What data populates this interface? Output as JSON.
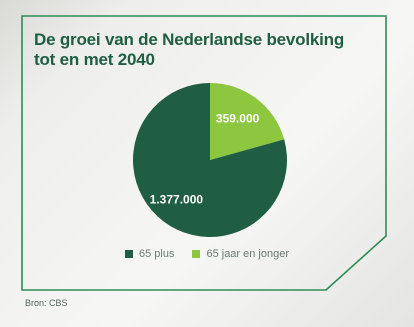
{
  "chart_data": {
    "type": "pie",
    "title": "De groei van de Nederlandse bevolking tot en met 2040",
    "categories": [
      "65 plus",
      "65 jaar en jonger"
    ],
    "values": [
      1377000,
      359000
    ],
    "value_labels": [
      "1.377.000",
      "359.000"
    ],
    "colors": [
      "#1f5e42",
      "#8dc63f"
    ],
    "legend_position": "bottom"
  },
  "source": "Bron: CBS",
  "colors": {
    "frame": "#2e8b57",
    "title": "#1f5e42"
  }
}
